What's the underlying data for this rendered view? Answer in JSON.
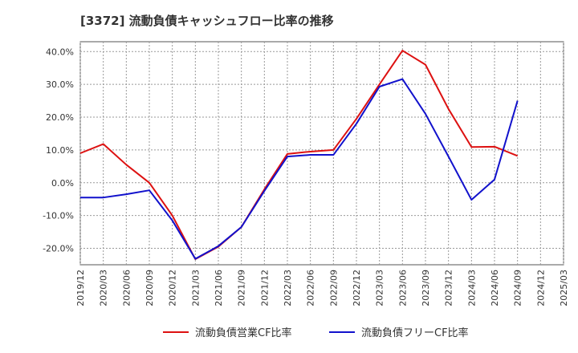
{
  "chart_data": {
    "type": "line",
    "title": "[3372]  流動負債キャッシュフロー比率の推移",
    "xlabel": "",
    "ylabel": "",
    "x_ticks": [
      "2019/12",
      "2020/03",
      "2020/06",
      "2020/09",
      "2020/12",
      "2021/03",
      "2021/06",
      "2021/09",
      "2021/12",
      "2022/03",
      "2022/06",
      "2022/09",
      "2022/12",
      "2023/03",
      "2023/06",
      "2023/09",
      "2023/12",
      "2024/03",
      "2024/06",
      "2024/09",
      "2024/12",
      "2025/03"
    ],
    "y_ticks": [
      "-20.0%",
      "-10.0%",
      "0.0%",
      "10.0%",
      "20.0%",
      "30.0%",
      "40.0%"
    ],
    "ylim": [
      -25,
      43
    ],
    "grid": true,
    "legend_position": "bottom",
    "series": [
      {
        "name": "流動負債営業CF比率",
        "color": "#dd1111",
        "values": [
          9.0,
          11.8,
          5.5,
          0.0,
          -10.0,
          -23.3,
          -19.5,
          -13.5,
          -2.0,
          8.8,
          9.5,
          10.0,
          19.5,
          30.0,
          40.3,
          36.0,
          22.5,
          10.9,
          11.0,
          8.2,
          null,
          null
        ]
      },
      {
        "name": "流動負債フリーCF比率",
        "color": "#1111cc",
        "values": [
          -4.5,
          -4.5,
          -3.5,
          -2.3,
          -11.5,
          -23.2,
          -19.3,
          -13.5,
          -2.5,
          8.0,
          8.5,
          8.5,
          18.0,
          29.3,
          31.6,
          21.0,
          8.0,
          -5.2,
          1.0,
          25.0,
          null,
          null
        ]
      }
    ]
  }
}
